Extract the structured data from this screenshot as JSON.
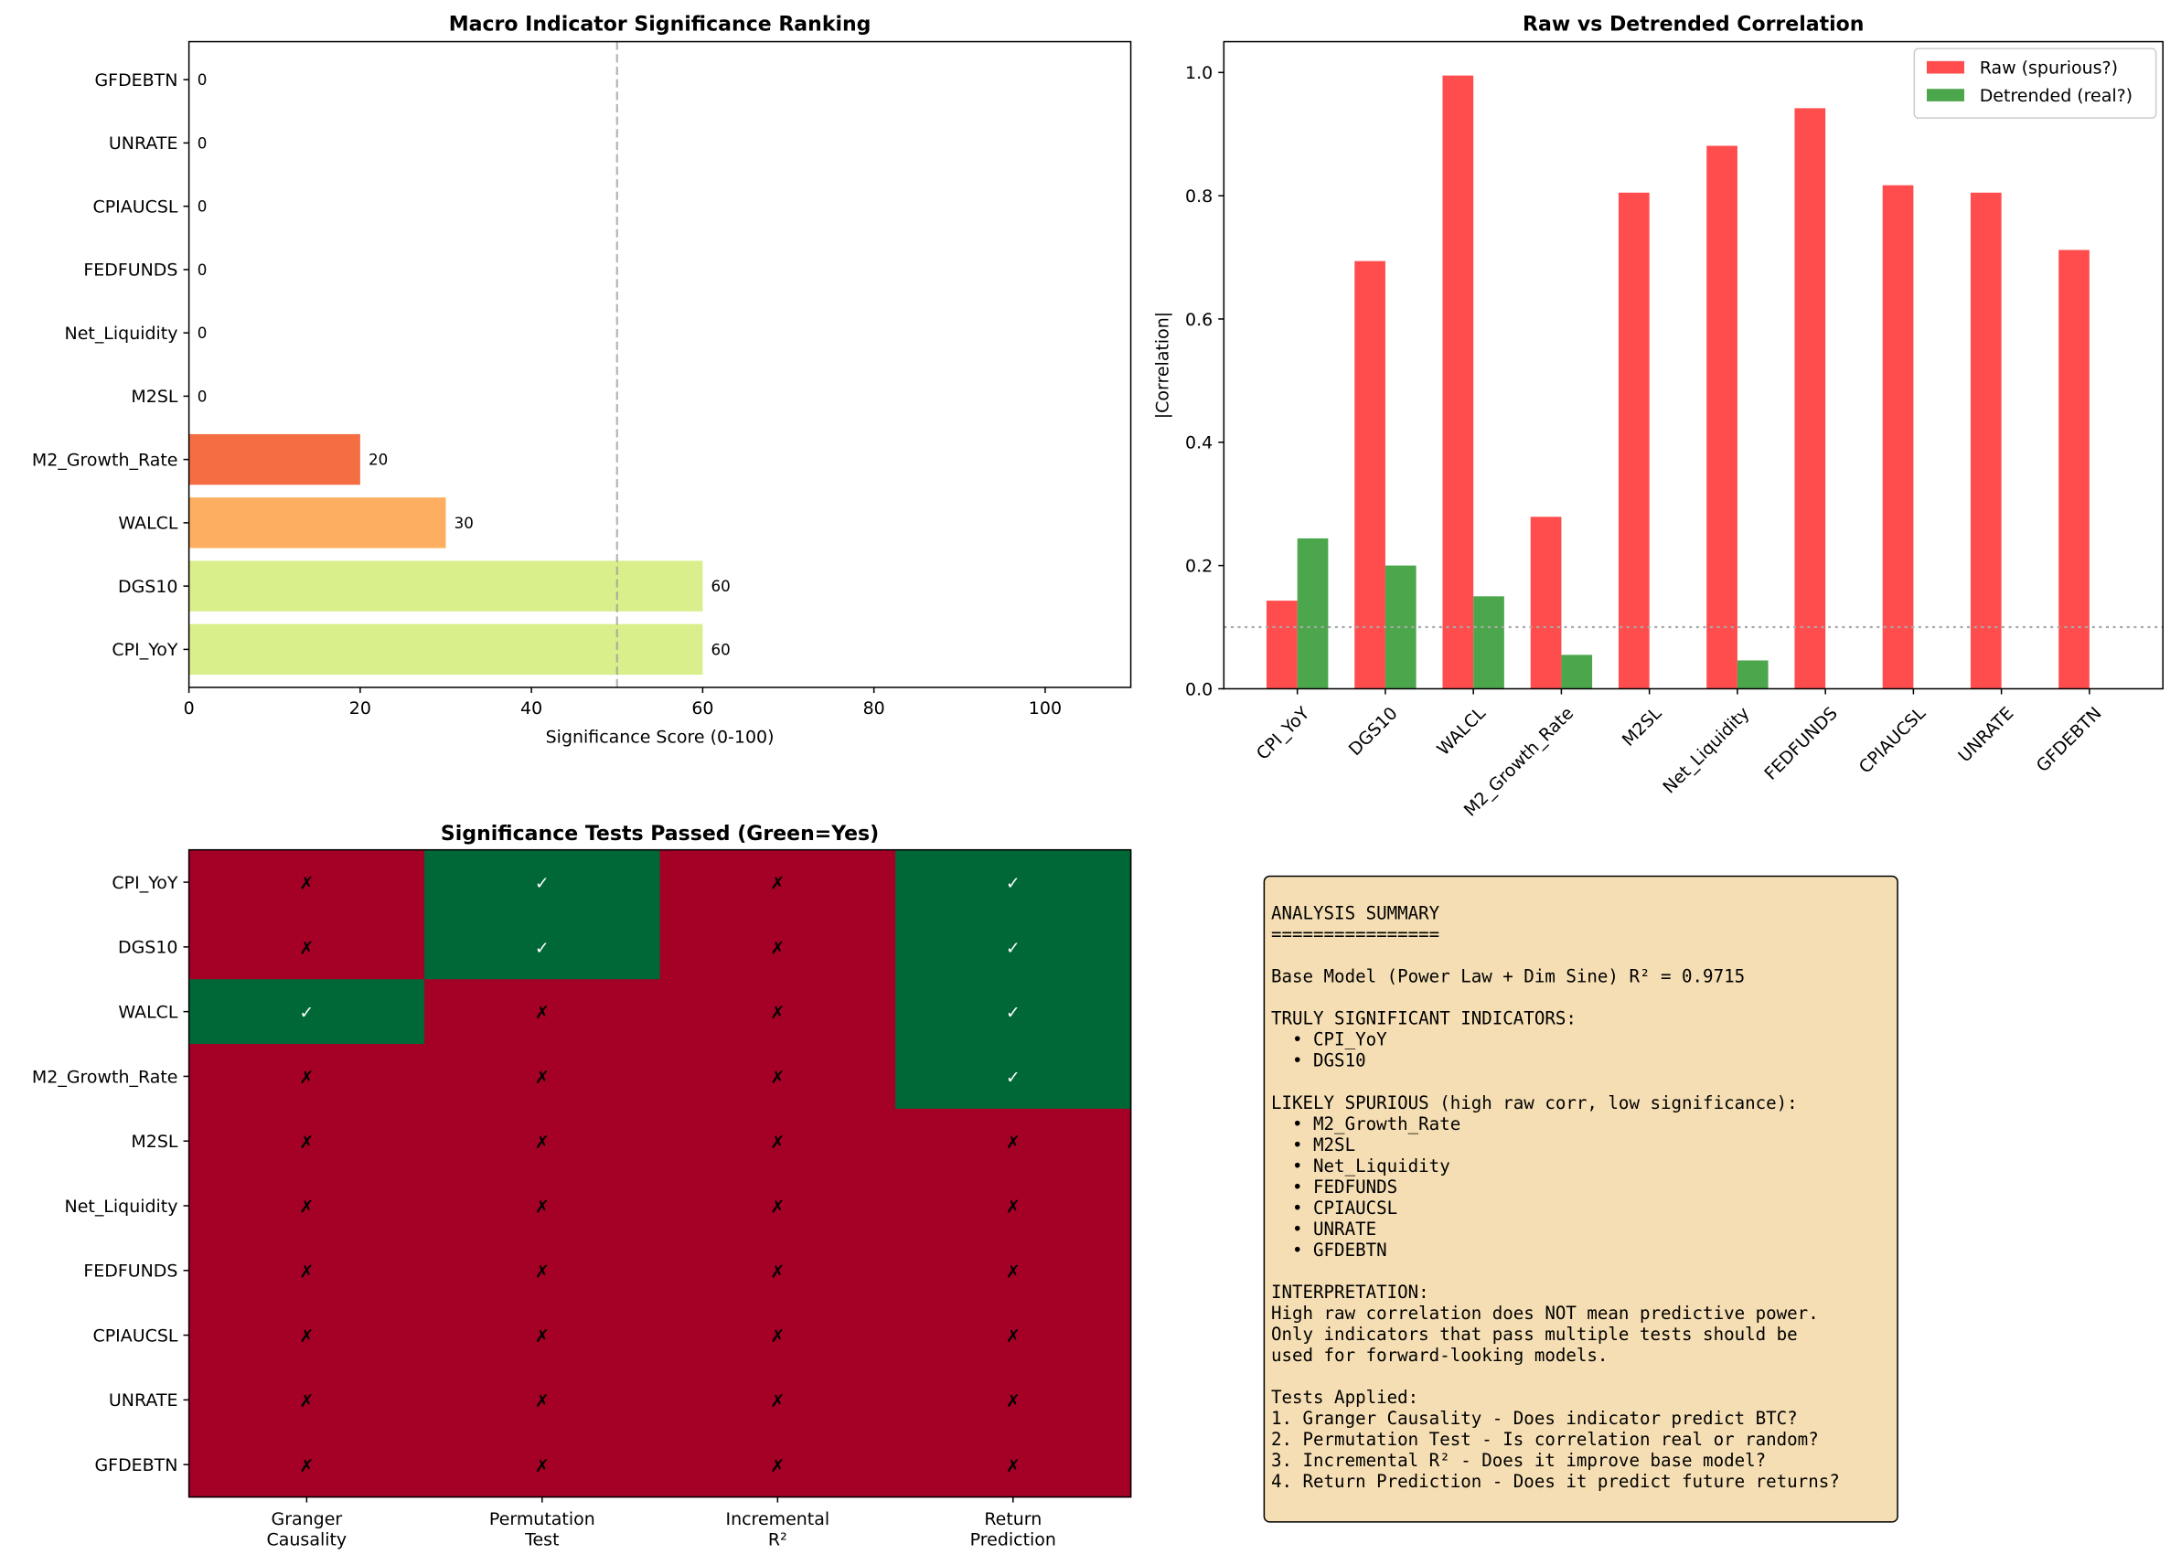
{
  "chart_data": [
    {
      "type": "bar",
      "orientation": "horizontal",
      "title": "Macro Indicator Significance Ranking",
      "xlabel": "Significance Score (0-100)",
      "ylabel": "",
      "xlim": [
        0,
        110
      ],
      "xticks": [
        0,
        20,
        40,
        60,
        80,
        100
      ],
      "categories": [
        "CPI_YoY",
        "DGS10",
        "WALCL",
        "M2_Growth_Rate",
        "M2SL",
        "Net_Liquidity",
        "FEDFUNDS",
        "CPIAUCSL",
        "UNRATE",
        "GFDEBTN"
      ],
      "values": [
        60,
        60,
        30,
        20,
        0,
        0,
        0,
        0,
        0,
        0
      ],
      "colors": [
        "#d9ef8b",
        "#d9ef8b",
        "#fdae61",
        "#f46d43",
        "#a50026",
        "#a50026",
        "#a50026",
        "#a50026",
        "#a50026",
        "#a50026"
      ],
      "reference_line": {
        "x": 50,
        "style": "dashed",
        "color": "#999999"
      },
      "data_labels": true,
      "grid": false
    },
    {
      "type": "bar",
      "title": "Raw vs Detrended Correlation",
      "xlabel": "",
      "ylabel": "|Correlation|",
      "ylim": [
        0,
        1.05
      ],
      "yticks": [
        0.0,
        0.2,
        0.4,
        0.6,
        0.8,
        1.0
      ],
      "categories": [
        "CPI_YoY",
        "DGS10",
        "WALCL",
        "M2_Growth_Rate",
        "M2SL",
        "Net_Liquidity",
        "FEDFUNDS",
        "CPIAUCSL",
        "UNRATE",
        "GFDEBTN"
      ],
      "series": [
        {
          "name": "Raw (spurious?)",
          "color": "#ff4d4d",
          "values": [
            0.143,
            0.694,
            0.995,
            0.279,
            0.805,
            0.881,
            0.942,
            0.817,
            0.805,
            0.712
          ]
        },
        {
          "name": "Detrended (real?)",
          "color": "#4ca64c",
          "values": [
            0.244,
            0.2,
            0.15,
            0.055,
            0.0,
            0.046,
            0.0,
            0.0,
            0.0,
            0.0
          ]
        }
      ],
      "reference_line": {
        "y": 0.1,
        "style": "dotted",
        "color": "#aaaaaa"
      },
      "legend": "top-right",
      "grid": false
    },
    {
      "type": "heatmap",
      "title": "Significance Tests Passed (Green=Yes)",
      "rows": [
        "CPI_YoY",
        "DGS10",
        "WALCL",
        "M2_Growth_Rate",
        "M2SL",
        "Net_Liquidity",
        "FEDFUNDS",
        "CPIAUCSL",
        "UNRATE",
        "GFDEBTN"
      ],
      "columns": [
        "Granger\nCausality",
        "Permutation\nTest",
        "Incremental\nR²",
        "Return\nPrediction"
      ],
      "values": [
        [
          0,
          1,
          0,
          1
        ],
        [
          0,
          1,
          0,
          1
        ],
        [
          1,
          0,
          0,
          1
        ],
        [
          0,
          0,
          0,
          1
        ],
        [
          0,
          0,
          0,
          0
        ],
        [
          0,
          0,
          0,
          0
        ],
        [
          0,
          0,
          0,
          0
        ],
        [
          0,
          0,
          0,
          0
        ],
        [
          0,
          0,
          0,
          0
        ],
        [
          0,
          0,
          0,
          0
        ]
      ],
      "pass_mark": "✓",
      "fail_mark": "✗",
      "pass_color": "#006837",
      "fail_color": "#a50026"
    }
  ],
  "summary_box": {
    "background": "#f5deb3",
    "lines": [
      "ANALYSIS SUMMARY",
      "================",
      "",
      "Base Model (Power Law + Dim Sine) R² = 0.9715",
      "",
      "TRULY SIGNIFICANT INDICATORS:",
      "  • CPI_YoY",
      "  • DGS10",
      "",
      "LIKELY SPURIOUS (high raw corr, low significance):",
      "  • M2_Growth_Rate",
      "  • M2SL",
      "  • Net_Liquidity",
      "  • FEDFUNDS",
      "  • CPIAUCSL",
      "  • UNRATE",
      "  • GFDEBTN",
      "",
      "INTERPRETATION:",
      "High raw correlation does NOT mean predictive power.",
      "Only indicators that pass multiple tests should be",
      "used for forward-looking models.",
      "",
      "Tests Applied:",
      "1. Granger Causality - Does indicator predict BTC?",
      "2. Permutation Test - Is correlation real or random?",
      "3. Incremental R² - Does it improve base model?",
      "4. Return Prediction - Does it predict future returns?"
    ]
  }
}
